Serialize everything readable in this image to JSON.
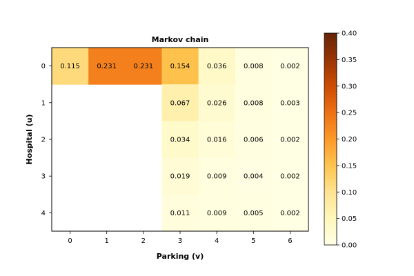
{
  "chart_data": {
    "type": "heatmap",
    "title": "Markov chain",
    "xlabel": "Parking (v)",
    "ylabel": "Hospital (u)",
    "x_categories": [
      "0",
      "1",
      "2",
      "3",
      "4",
      "5",
      "6"
    ],
    "y_categories": [
      "0",
      "1",
      "2",
      "3",
      "4"
    ],
    "values": [
      [
        0.115,
        0.231,
        0.231,
        0.154,
        0.036,
        0.008,
        0.002
      ],
      [
        null,
        null,
        null,
        0.067,
        0.026,
        0.008,
        0.003
      ],
      [
        null,
        null,
        null,
        0.034,
        0.016,
        0.006,
        0.002
      ],
      [
        null,
        null,
        null,
        0.019,
        0.009,
        0.004,
        0.002
      ],
      [
        null,
        null,
        null,
        0.011,
        0.009,
        0.005,
        0.002
      ]
    ],
    "value_labels": [
      [
        "0.115",
        "0.231",
        "0.231",
        "0.154",
        "0.036",
        "0.008",
        "0.002"
      ],
      [
        "",
        "",
        "",
        "0.067",
        "0.026",
        "0.008",
        "0.003"
      ],
      [
        "",
        "",
        "",
        "0.034",
        "0.016",
        "0.006",
        "0.002"
      ],
      [
        "",
        "",
        "",
        "0.019",
        "0.009",
        "0.004",
        "0.002"
      ],
      [
        "",
        "",
        "",
        "0.011",
        "0.009",
        "0.005",
        "0.002"
      ]
    ],
    "colorbar": {
      "range": [
        0.0,
        0.4
      ],
      "ticks": [
        "0.00",
        "0.05",
        "0.10",
        "0.15",
        "0.20",
        "0.25",
        "0.30",
        "0.35",
        "0.40"
      ],
      "colormap": "YlOrBr"
    },
    "grid": false,
    "colors": {
      "low": "#ffffe5",
      "high": "#662506",
      "stops": [
        "#ffffe5",
        "#fff7bc",
        "#fee391",
        "#fec44f",
        "#fe9929",
        "#ec7014",
        "#cc4c02",
        "#993404",
        "#662506"
      ]
    }
  }
}
